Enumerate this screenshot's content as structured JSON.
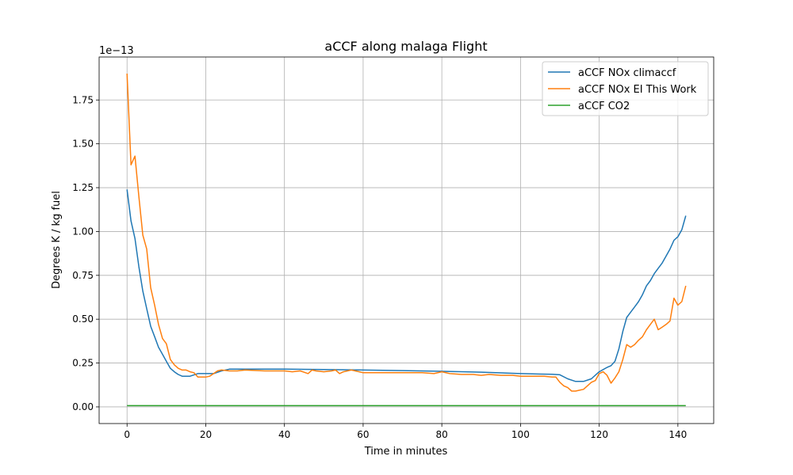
{
  "chart_data": {
    "type": "line",
    "title": "aCCF along malaga Flight",
    "xlabel": "Time in minutes",
    "ylabel": "Degrees K / kg fuel",
    "y_offset_label": "1e−13",
    "xlim": [
      -7.1,
      149.1
    ],
    "ylim": [
      -0.095,
      1.995
    ],
    "xticks": [
      0,
      20,
      40,
      60,
      80,
      100,
      120,
      140
    ],
    "xtick_labels": [
      "0",
      "20",
      "40",
      "60",
      "80",
      "100",
      "120",
      "140"
    ],
    "yticks": [
      0.0,
      0.25,
      0.5,
      0.75,
      1.0,
      1.25,
      1.5,
      1.75
    ],
    "ytick_labels": [
      "0.00",
      "0.25",
      "0.50",
      "0.75",
      "1.00",
      "1.25",
      "1.50",
      "1.75"
    ],
    "grid": true,
    "legend_position": "top-right",
    "series": [
      {
        "name": "aCCF NOx climaccf",
        "color": "#1f77b4",
        "points": [
          [
            0,
            1.24
          ],
          [
            1,
            1.06
          ],
          [
            2,
            0.96
          ],
          [
            3,
            0.8
          ],
          [
            4,
            0.66
          ],
          [
            5,
            0.56
          ],
          [
            6,
            0.46
          ],
          [
            7,
            0.4
          ],
          [
            8,
            0.34
          ],
          [
            9,
            0.3
          ],
          [
            10,
            0.26
          ],
          [
            11,
            0.22
          ],
          [
            12,
            0.2
          ],
          [
            13,
            0.185
          ],
          [
            14,
            0.175
          ],
          [
            16,
            0.175
          ],
          [
            18,
            0.19
          ],
          [
            20,
            0.19
          ],
          [
            22,
            0.19
          ],
          [
            24,
            0.205
          ],
          [
            26,
            0.215
          ],
          [
            28,
            0.215
          ],
          [
            32,
            0.215
          ],
          [
            40,
            0.215
          ],
          [
            50,
            0.213
          ],
          [
            60,
            0.21
          ],
          [
            70,
            0.207
          ],
          [
            80,
            0.203
          ],
          [
            90,
            0.198
          ],
          [
            100,
            0.19
          ],
          [
            105,
            0.187
          ],
          [
            108,
            0.186
          ],
          [
            110,
            0.183
          ],
          [
            112,
            0.16
          ],
          [
            114,
            0.145
          ],
          [
            116,
            0.145
          ],
          [
            118,
            0.16
          ],
          [
            120,
            0.2
          ],
          [
            122,
            0.225
          ],
          [
            123,
            0.235
          ],
          [
            124,
            0.26
          ],
          [
            125,
            0.33
          ],
          [
            126,
            0.43
          ],
          [
            127,
            0.51
          ],
          [
            128,
            0.54
          ],
          [
            129,
            0.57
          ],
          [
            130,
            0.6
          ],
          [
            131,
            0.64
          ],
          [
            132,
            0.69
          ],
          [
            133,
            0.72
          ],
          [
            134,
            0.76
          ],
          [
            135,
            0.79
          ],
          [
            136,
            0.82
          ],
          [
            137,
            0.86
          ],
          [
            138,
            0.9
          ],
          [
            139,
            0.95
          ],
          [
            140,
            0.97
          ],
          [
            141,
            1.01
          ],
          [
            142,
            1.09
          ]
        ]
      },
      {
        "name": "aCCF NOx EI This Work",
        "color": "#ff7f0e",
        "points": [
          [
            0,
            1.9
          ],
          [
            1,
            1.38
          ],
          [
            2,
            1.43
          ],
          [
            3,
            1.2
          ],
          [
            4,
            0.98
          ],
          [
            5,
            0.9
          ],
          [
            6,
            0.68
          ],
          [
            7,
            0.58
          ],
          [
            8,
            0.47
          ],
          [
            9,
            0.39
          ],
          [
            10,
            0.36
          ],
          [
            11,
            0.27
          ],
          [
            12,
            0.24
          ],
          [
            13,
            0.22
          ],
          [
            14,
            0.21
          ],
          [
            15,
            0.21
          ],
          [
            16,
            0.2
          ],
          [
            17,
            0.195
          ],
          [
            18,
            0.17
          ],
          [
            20,
            0.17
          ],
          [
            21,
            0.175
          ],
          [
            22,
            0.19
          ],
          [
            23,
            0.205
          ],
          [
            24,
            0.21
          ],
          [
            26,
            0.205
          ],
          [
            28,
            0.205
          ],
          [
            30,
            0.21
          ],
          [
            35,
            0.205
          ],
          [
            40,
            0.205
          ],
          [
            42,
            0.2
          ],
          [
            44,
            0.205
          ],
          [
            46,
            0.19
          ],
          [
            47,
            0.21
          ],
          [
            48,
            0.205
          ],
          [
            50,
            0.2
          ],
          [
            52,
            0.205
          ],
          [
            53,
            0.21
          ],
          [
            54,
            0.19
          ],
          [
            55,
            0.2
          ],
          [
            57,
            0.21
          ],
          [
            59,
            0.2
          ],
          [
            60,
            0.195
          ],
          [
            65,
            0.195
          ],
          [
            70,
            0.195
          ],
          [
            75,
            0.195
          ],
          [
            78,
            0.19
          ],
          [
            80,
            0.2
          ],
          [
            82,
            0.19
          ],
          [
            85,
            0.185
          ],
          [
            88,
            0.185
          ],
          [
            90,
            0.18
          ],
          [
            92,
            0.185
          ],
          [
            95,
            0.18
          ],
          [
            98,
            0.18
          ],
          [
            100,
            0.175
          ],
          [
            102,
            0.175
          ],
          [
            104,
            0.175
          ],
          [
            106,
            0.175
          ],
          [
            108,
            0.17
          ],
          [
            109,
            0.17
          ],
          [
            110,
            0.14
          ],
          [
            111,
            0.12
          ],
          [
            112,
            0.11
          ],
          [
            113,
            0.09
          ],
          [
            114,
            0.09
          ],
          [
            115,
            0.095
          ],
          [
            116,
            0.1
          ],
          [
            117,
            0.12
          ],
          [
            118,
            0.14
          ],
          [
            119,
            0.15
          ],
          [
            120,
            0.19
          ],
          [
            121,
            0.2
          ],
          [
            122,
            0.18
          ],
          [
            123,
            0.135
          ],
          [
            124,
            0.165
          ],
          [
            125,
            0.2
          ],
          [
            126,
            0.27
          ],
          [
            127,
            0.355
          ],
          [
            128,
            0.34
          ],
          [
            129,
            0.355
          ],
          [
            130,
            0.38
          ],
          [
            131,
            0.4
          ],
          [
            132,
            0.44
          ],
          [
            133,
            0.47
          ],
          [
            134,
            0.5
          ],
          [
            135,
            0.44
          ],
          [
            136,
            0.455
          ],
          [
            137,
            0.47
          ],
          [
            138,
            0.49
          ],
          [
            139,
            0.62
          ],
          [
            140,
            0.58
          ],
          [
            141,
            0.6
          ],
          [
            142,
            0.69
          ]
        ]
      },
      {
        "name": "aCCF CO2",
        "color": "#2ca02c",
        "points": [
          [
            0,
            0.007
          ],
          [
            142,
            0.007
          ]
        ]
      }
    ]
  }
}
